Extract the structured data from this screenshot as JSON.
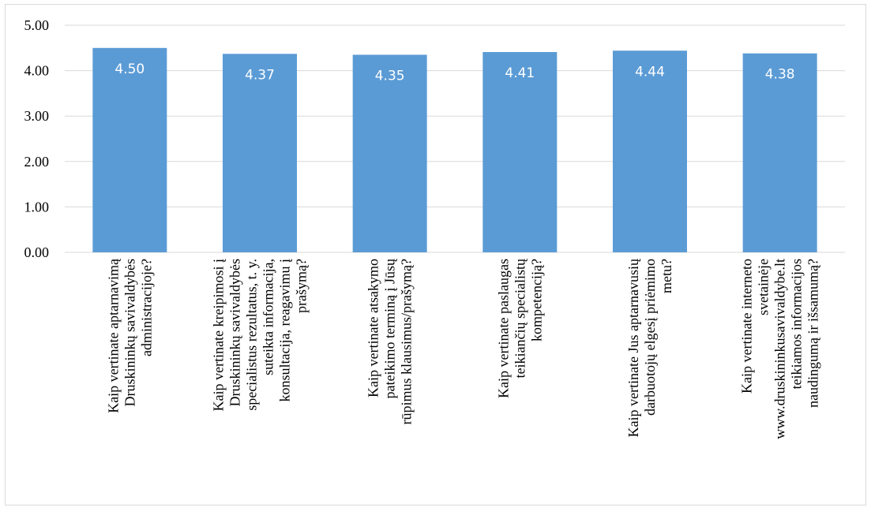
{
  "chart_data": {
    "type": "bar",
    "title": "",
    "xlabel": "",
    "ylabel": "",
    "ylim": [
      0,
      5
    ],
    "yticks": [
      "0.00",
      "1.00",
      "2.00",
      "3.00",
      "4.00",
      "5.00"
    ],
    "grid": true,
    "legend": "none",
    "bar_color": "#5b9bd5",
    "grid_color": "#d9d9d9",
    "categories": [
      [
        "Kaip vertinate aptarnavimą",
        "Druskininkų savivaldybės",
        "administracijoje?"
      ],
      [
        "Kaip vertinate kreipimosi į",
        "Druskininkų savivaldybės",
        "specialistus rezultatus, t. y.",
        "suteikta informacija,",
        "konsultacija, reagavimu į",
        "prašymą?"
      ],
      [
        "Kaip vertinate atsakymo",
        "pateikimo terminą į Jūsų",
        "rūpimus klausimus/prašymą?"
      ],
      [
        "Kaip vertinate paslaugas",
        "teikiančių specialistų",
        "kompetenciją?"
      ],
      [
        "Kaip vertinate Jus aptarnavusių",
        "darbuotojų elgesį priėmimo",
        "metu?"
      ],
      [
        "Kaip vertinate interneto",
        "svetainėje",
        "www.druskininkusavivaldybe.lt",
        "teikiamos informacijos",
        "naudingumą ir išsamumą?"
      ]
    ],
    "values": [
      4.5,
      4.37,
      4.35,
      4.41,
      4.44,
      4.38
    ],
    "data_labels": [
      "4.50",
      "4.37",
      "4.35",
      "4.41",
      "4.44",
      "4.38"
    ]
  }
}
